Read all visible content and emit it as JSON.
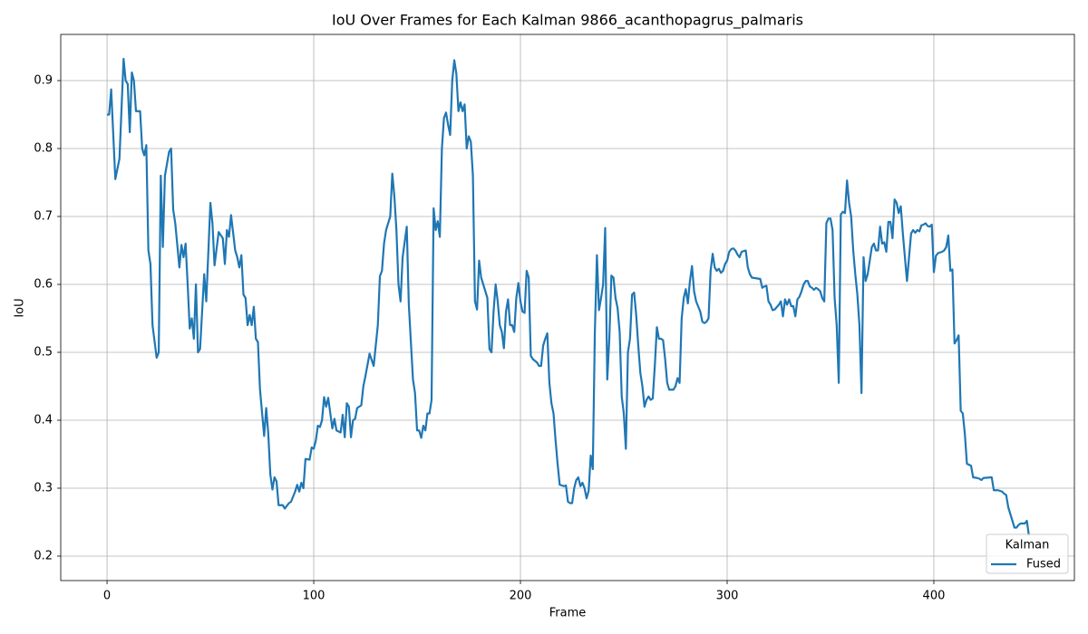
{
  "chart_data": {
    "type": "line",
    "title": "IoU Over Frames for Each Kalman 9866_acanthopagrus_palmaris",
    "x_label": "Frame",
    "y_label": "IoU",
    "xlim": [
      -22.4,
      468
    ],
    "ylim": [
      0.164,
      0.968
    ],
    "xticks": [
      0,
      100,
      200,
      300,
      400
    ],
    "yticks": [
      0.2,
      0.3,
      0.4,
      0.5,
      0.6,
      0.7,
      0.8,
      0.9
    ],
    "grid": true,
    "legend_title": "Kalman",
    "legend_position": "lower right",
    "x": [
      0,
      1,
      2,
      4,
      6,
      8,
      9,
      10,
      11,
      12,
      13,
      14,
      16,
      17,
      18,
      19,
      20,
      21,
      22,
      24,
      25,
      26,
      27,
      28,
      30,
      31,
      32,
      33,
      35,
      36,
      37,
      38,
      39,
      40,
      41,
      42,
      43,
      44,
      45,
      47,
      48,
      50,
      51,
      52,
      54,
      56,
      57,
      58,
      59,
      60,
      62,
      63,
      64,
      65,
      66,
      67,
      68,
      69,
      70,
      71,
      72,
      73,
      74,
      76,
      77,
      78,
      79,
      80,
      81,
      82,
      83,
      85,
      86,
      88,
      89,
      91,
      92,
      93,
      94,
      95,
      96,
      98,
      99,
      100,
      101,
      102,
      103,
      104,
      105,
      106,
      107,
      109,
      110,
      111,
      113,
      114,
      115,
      116,
      117,
      118,
      119,
      120,
      121,
      123,
      124,
      125,
      127,
      129,
      130,
      131,
      132,
      133,
      134,
      135,
      137,
      138,
      139,
      140,
      141,
      142,
      143,
      145,
      146,
      148,
      149,
      150,
      151,
      152,
      153,
      154,
      155,
      156,
      157,
      158,
      159,
      160,
      161,
      162,
      163,
      164,
      165,
      166,
      167,
      168,
      169,
      170,
      171,
      172,
      173,
      174,
      175,
      176,
      177,
      178,
      179,
      180,
      181,
      183,
      184,
      185,
      186,
      187,
      188,
      189,
      190,
      191,
      192,
      193,
      194,
      195,
      196,
      197,
      198,
      199,
      200,
      201,
      202,
      203,
      204,
      205,
      206,
      208,
      209,
      210,
      211,
      212,
      213,
      214,
      215,
      216,
      217,
      218,
      219,
      221,
      222,
      223,
      224,
      225,
      226,
      227,
      228,
      229,
      230,
      231,
      232,
      233,
      234,
      235,
      236,
      237,
      238,
      239,
      240,
      241,
      242,
      243,
      244,
      245,
      246,
      247,
      248,
      249,
      250,
      251,
      252,
      253,
      254,
      255,
      256,
      257,
      258,
      259,
      260,
      261,
      262,
      263,
      264,
      265,
      266,
      267,
      268,
      269,
      270,
      271,
      272,
      274,
      275,
      276,
      277,
      278,
      279,
      280,
      281,
      282,
      283,
      284,
      285,
      287,
      288,
      289,
      290,
      291,
      292,
      293,
      294,
      295,
      296,
      297,
      298,
      299,
      300,
      301,
      302,
      303,
      304,
      305,
      306,
      307,
      309,
      310,
      311,
      312,
      316,
      317,
      318,
      319,
      320,
      321,
      322,
      323,
      325,
      326,
      327,
      328,
      329,
      330,
      331,
      332,
      333,
      334,
      335,
      336,
      337,
      338,
      339,
      340,
      341,
      342,
      343,
      344,
      345,
      346,
      347,
      348,
      349,
      350,
      351,
      352,
      353,
      354,
      355,
      356,
      357,
      358,
      359,
      360,
      361,
      362,
      363,
      364,
      365,
      366,
      367,
      368,
      369,
      370,
      371,
      372,
      373,
      374,
      375,
      376,
      377,
      378,
      379,
      380,
      381,
      382,
      383,
      384,
      385,
      386,
      387,
      388,
      389,
      390,
      391,
      392,
      393,
      394,
      395,
      396,
      397,
      398,
      399,
      400,
      401,
      402,
      404,
      405,
      406,
      407,
      408,
      409,
      410,
      411,
      412,
      413,
      414,
      415,
      416,
      418,
      419,
      421,
      422,
      423,
      424,
      428,
      429,
      431,
      433,
      434,
      435,
      436,
      437,
      438,
      439,
      440,
      441,
      442,
      443,
      444,
      445,
      446
    ],
    "series": [
      {
        "name": "Fused",
        "color": "#1f77b4",
        "values": [
          0.85,
          0.85,
          0.887,
          0.755,
          0.785,
          0.932,
          0.9,
          0.895,
          0.824,
          0.912,
          0.9,
          0.855,
          0.855,
          0.8,
          0.79,
          0.805,
          0.65,
          0.63,
          0.54,
          0.492,
          0.5,
          0.76,
          0.655,
          0.76,
          0.795,
          0.8,
          0.71,
          0.69,
          0.625,
          0.658,
          0.64,
          0.66,
          0.6,
          0.535,
          0.55,
          0.52,
          0.6,
          0.5,
          0.505,
          0.615,
          0.575,
          0.72,
          0.69,
          0.628,
          0.677,
          0.668,
          0.63,
          0.68,
          0.67,
          0.702,
          0.65,
          0.64,
          0.625,
          0.643,
          0.585,
          0.58,
          0.54,
          0.555,
          0.54,
          0.567,
          0.52,
          0.515,
          0.445,
          0.377,
          0.418,
          0.38,
          0.32,
          0.298,
          0.316,
          0.31,
          0.275,
          0.275,
          0.27,
          0.278,
          0.28,
          0.295,
          0.305,
          0.295,
          0.308,
          0.3,
          0.343,
          0.342,
          0.36,
          0.358,
          0.37,
          0.392,
          0.39,
          0.4,
          0.434,
          0.42,
          0.433,
          0.388,
          0.402,
          0.385,
          0.382,
          0.408,
          0.375,
          0.425,
          0.42,
          0.375,
          0.4,
          0.402,
          0.418,
          0.422,
          0.45,
          0.465,
          0.498,
          0.48,
          0.51,
          0.54,
          0.612,
          0.62,
          0.66,
          0.68,
          0.7,
          0.763,
          0.73,
          0.68,
          0.6,
          0.575,
          0.64,
          0.685,
          0.57,
          0.46,
          0.44,
          0.385,
          0.385,
          0.374,
          0.392,
          0.385,
          0.41,
          0.41,
          0.43,
          0.712,
          0.68,
          0.693,
          0.67,
          0.8,
          0.845,
          0.853,
          0.835,
          0.82,
          0.9,
          0.93,
          0.91,
          0.855,
          0.868,
          0.855,
          0.865,
          0.8,
          0.818,
          0.81,
          0.76,
          0.575,
          0.563,
          0.635,
          0.61,
          0.59,
          0.58,
          0.505,
          0.5,
          0.56,
          0.6,
          0.575,
          0.54,
          0.53,
          0.506,
          0.56,
          0.578,
          0.54,
          0.54,
          0.53,
          0.58,
          0.602,
          0.575,
          0.56,
          0.558,
          0.62,
          0.61,
          0.495,
          0.49,
          0.485,
          0.48,
          0.48,
          0.51,
          0.52,
          0.528,
          0.455,
          0.425,
          0.41,
          0.37,
          0.335,
          0.305,
          0.303,
          0.304,
          0.28,
          0.278,
          0.278,
          0.3,
          0.312,
          0.316,
          0.303,
          0.308,
          0.3,
          0.285,
          0.296,
          0.348,
          0.328,
          0.53,
          0.643,
          0.562,
          0.58,
          0.6,
          0.683,
          0.46,
          0.52,
          0.613,
          0.61,
          0.58,
          0.565,
          0.53,
          0.435,
          0.41,
          0.358,
          0.5,
          0.52,
          0.585,
          0.588,
          0.555,
          0.51,
          0.47,
          0.45,
          0.42,
          0.43,
          0.435,
          0.43,
          0.432,
          0.48,
          0.537,
          0.52,
          0.52,
          0.518,
          0.49,
          0.455,
          0.445,
          0.445,
          0.45,
          0.462,
          0.455,
          0.55,
          0.58,
          0.593,
          0.572,
          0.605,
          0.627,
          0.59,
          0.575,
          0.56,
          0.545,
          0.543,
          0.545,
          0.55,
          0.62,
          0.645,
          0.625,
          0.62,
          0.623,
          0.617,
          0.62,
          0.63,
          0.635,
          0.648,
          0.652,
          0.653,
          0.65,
          0.644,
          0.64,
          0.648,
          0.65,
          0.625,
          0.615,
          0.61,
          0.608,
          0.595,
          0.597,
          0.598,
          0.575,
          0.57,
          0.562,
          0.563,
          0.57,
          0.575,
          0.553,
          0.578,
          0.57,
          0.578,
          0.568,
          0.568,
          0.553,
          0.578,
          0.582,
          0.59,
          0.6,
          0.605,
          0.605,
          0.597,
          0.595,
          0.592,
          0.595,
          0.593,
          0.59,
          0.58,
          0.575,
          0.69,
          0.697,
          0.697,
          0.68,
          0.58,
          0.54,
          0.455,
          0.703,
          0.707,
          0.705,
          0.753,
          0.72,
          0.7,
          0.65,
          0.615,
          0.585,
          0.54,
          0.44,
          0.64,
          0.605,
          0.615,
          0.635,
          0.655,
          0.66,
          0.65,
          0.65,
          0.685,
          0.66,
          0.662,
          0.648,
          0.692,
          0.692,
          0.668,
          0.725,
          0.72,
          0.705,
          0.715,
          0.675,
          0.64,
          0.605,
          0.64,
          0.675,
          0.68,
          0.676,
          0.68,
          0.678,
          0.687,
          0.688,
          0.69,
          0.686,
          0.685,
          0.688,
          0.618,
          0.642,
          0.646,
          0.648,
          0.65,
          0.655,
          0.672,
          0.62,
          0.622,
          0.513,
          0.518,
          0.525,
          0.414,
          0.41,
          0.38,
          0.336,
          0.333,
          0.316,
          0.315,
          0.314,
          0.312,
          0.315,
          0.316,
          0.297,
          0.297,
          0.295,
          0.292,
          0.29,
          0.272,
          0.262,
          0.252,
          0.242,
          0.242,
          0.246,
          0.248,
          0.248,
          0.248,
          0.252,
          0.23
        ]
      }
    ]
  }
}
